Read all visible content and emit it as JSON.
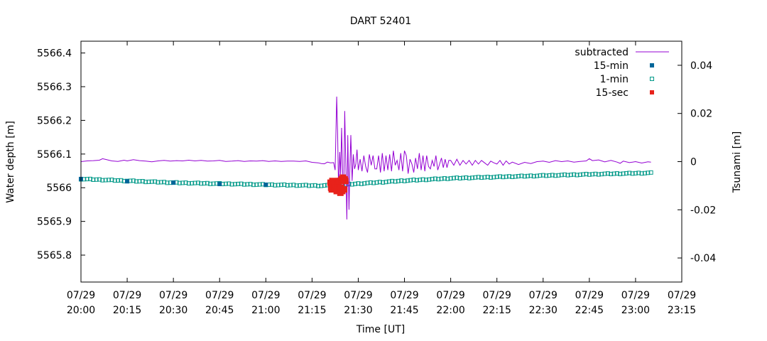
{
  "chart_data": {
    "type": "line",
    "title": "DART 52401",
    "xlabel": "Time [UT]",
    "ylabel": "Water depth [m]",
    "y2label": "Tsunami [m]",
    "x_ticks": [
      {
        "top": "07/29",
        "bottom": "20:00",
        "minutes": 0
      },
      {
        "top": "07/29",
        "bottom": "20:15",
        "minutes": 15
      },
      {
        "top": "07/29",
        "bottom": "20:30",
        "minutes": 30
      },
      {
        "top": "07/29",
        "bottom": "20:45",
        "minutes": 45
      },
      {
        "top": "07/29",
        "bottom": "21:00",
        "minutes": 60
      },
      {
        "top": "07/29",
        "bottom": "21:15",
        "minutes": 75
      },
      {
        "top": "07/29",
        "bottom": "21:30",
        "minutes": 90
      },
      {
        "top": "07/29",
        "bottom": "21:45",
        "minutes": 105
      },
      {
        "top": "07/29",
        "bottom": "22:00",
        "minutes": 120
      },
      {
        "top": "07/29",
        "bottom": "22:15",
        "minutes": 135
      },
      {
        "top": "07/29",
        "bottom": "22:30",
        "minutes": 150
      },
      {
        "top": "07/29",
        "bottom": "22:45",
        "minutes": 165
      },
      {
        "top": "07/29",
        "bottom": "23:00",
        "minutes": 180
      },
      {
        "top": "07/29",
        "bottom": "23:15",
        "minutes": 195
      }
    ],
    "xlim_minutes": [
      0,
      195
    ],
    "ylim": [
      5565.72,
      5566.435
    ],
    "y_ticks": [
      "5565.8",
      "5565.9",
      "5566",
      "5566.1",
      "5566.2",
      "5566.3",
      "5566.4"
    ],
    "y2lim": [
      -0.05,
      0.05
    ],
    "y2_ticks": [
      "-0.04",
      "-0.02",
      "0",
      "0.02",
      "0.04"
    ],
    "legend_position": "top-right",
    "series": [
      {
        "name": "subtracted",
        "axis": "y2",
        "style": "line",
        "color": "#9400d3",
        "points": [
          [
            0,
            0.0
          ],
          [
            2,
            0.0003
          ],
          [
            4,
            0.0004
          ],
          [
            6,
            0.0006
          ],
          [
            7,
            0.0012
          ],
          [
            8,
            0.0009
          ],
          [
            10,
            0.0003
          ],
          [
            12,
            0.0001
          ],
          [
            14,
            0.0006
          ],
          [
            15,
            0.0003
          ],
          [
            17,
            0.0008
          ],
          [
            19,
            0.0004
          ],
          [
            21,
            0.0002
          ],
          [
            23,
            -0.0001
          ],
          [
            25,
            0.0003
          ],
          [
            27,
            0.0005
          ],
          [
            29,
            0.0002
          ],
          [
            31,
            0.0004
          ],
          [
            33,
            0.0003
          ],
          [
            35,
            0.0006
          ],
          [
            37,
            0.0003
          ],
          [
            39,
            0.0005
          ],
          [
            41,
            0.0002
          ],
          [
            43,
            0.0003
          ],
          [
            45,
            0.0005
          ],
          [
            47,
            0.0001
          ],
          [
            49,
            0.0002
          ],
          [
            51,
            0.0004
          ],
          [
            53,
            0.0001
          ],
          [
            55,
            0.0003
          ],
          [
            57,
            0.0002
          ],
          [
            59,
            0.0004
          ],
          [
            61,
            0.0001
          ],
          [
            63,
            0.0003
          ],
          [
            65,
            0.0001
          ],
          [
            67,
            0.0002
          ],
          [
            69,
            0.0002
          ],
          [
            71,
            0.0001
          ],
          [
            73,
            0.0003
          ],
          [
            75,
            -0.0003
          ],
          [
            77,
            -0.0005
          ],
          [
            78,
            -0.0008
          ],
          [
            79,
            -0.0009
          ],
          [
            80,
            -0.0002
          ],
          [
            81,
            -0.0005
          ],
          [
            82,
            -0.0004
          ],
          [
            82.5,
            -0.0035
          ],
          [
            83,
            0.027
          ],
          [
            83.3,
            0.012
          ],
          [
            83.6,
            -0.012
          ],
          [
            84,
            0.004
          ],
          [
            84.3,
            -0.006
          ],
          [
            84.6,
            0.014
          ],
          [
            85,
            -0.008
          ],
          [
            85.3,
            -0.012
          ],
          [
            85.6,
            0.021
          ],
          [
            86,
            -0.004
          ],
          [
            86.3,
            -0.024
          ],
          [
            86.6,
            0.011
          ],
          [
            87,
            -0.02
          ],
          [
            87.3,
            -0.002
          ],
          [
            87.6,
            0.011
          ],
          [
            88,
            -0.008
          ],
          [
            88.4,
            0.003
          ],
          [
            88.8,
            -0.003
          ],
          [
            89.2,
            -0.001
          ],
          [
            89.6,
            0.005
          ],
          [
            90,
            -0.0035
          ],
          [
            90.6,
            0.001
          ],
          [
            91.2,
            -0.004
          ],
          [
            91.8,
            0.0025
          ],
          [
            92.4,
            -0.002
          ],
          [
            93,
            -0.0045
          ],
          [
            93.6,
            0.003
          ],
          [
            94.2,
            -0.0015
          ],
          [
            94.8,
            0.0025
          ],
          [
            95.4,
            -0.003
          ],
          [
            96,
            -0.003
          ],
          [
            96.6,
            0.0025
          ],
          [
            97.2,
            -0.0045
          ],
          [
            97.8,
            0.0035
          ],
          [
            98.4,
            -0.004
          ],
          [
            99,
            0.0025
          ],
          [
            99.6,
            -0.0035
          ],
          [
            100.2,
            0.003
          ],
          [
            100.8,
            -0.004
          ],
          [
            101.4,
            0.0045
          ],
          [
            102,
            -0.0015
          ],
          [
            102.6,
            0.0005
          ],
          [
            103.2,
            -0.0035
          ],
          [
            103.8,
            0.0035
          ],
          [
            104.4,
            -0.004
          ],
          [
            105,
            0.0045
          ],
          [
            105.6,
            0.0025
          ],
          [
            106.2,
            -0.005
          ],
          [
            106.8,
            0.001
          ],
          [
            107.4,
            -0.001
          ],
          [
            108,
            -0.0045
          ],
          [
            108.6,
            0.0015
          ],
          [
            109.2,
            -0.003
          ],
          [
            109.8,
            0.0035
          ],
          [
            110.4,
            -0.0035
          ],
          [
            111,
            0.0025
          ],
          [
            111.6,
            -0.004
          ],
          [
            112.2,
            0.0025
          ],
          [
            112.8,
            -0.002
          ],
          [
            113.4,
            -0.003
          ],
          [
            114,
            0.0005
          ],
          [
            114.6,
            -0.002
          ],
          [
            115.2,
            0.0025
          ],
          [
            115.8,
            -0.0035
          ],
          [
            116.4,
            -0.001
          ],
          [
            117,
            0.0015
          ],
          [
            117.6,
            -0.0025
          ],
          [
            118.2,
            0.001
          ],
          [
            118.8,
            -0.0025
          ],
          [
            119.4,
            0.0005
          ],
          [
            120,
            0.0005
          ],
          [
            121,
            -0.0015
          ],
          [
            122,
            0.001
          ],
          [
            123,
            -0.0015
          ],
          [
            124,
            0.0005
          ],
          [
            125,
            -0.001
          ],
          [
            126,
            0.0005
          ],
          [
            127,
            -0.0015
          ],
          [
            128,
            0.0005
          ],
          [
            129,
            -0.001
          ],
          [
            130,
            0.0005
          ],
          [
            131,
            -0.0005
          ],
          [
            132,
            -0.0015
          ],
          [
            133,
            0.0002
          ],
          [
            134,
            -0.0005
          ],
          [
            135,
            -0.001
          ],
          [
            136,
            0.0005
          ],
          [
            137,
            -0.0015
          ],
          [
            138,
            0.0003
          ],
          [
            139,
            -0.001
          ],
          [
            140,
            -0.0002
          ],
          [
            142,
            -0.0012
          ],
          [
            144,
            -0.0003
          ],
          [
            146,
            -0.0008
          ],
          [
            148,
            0.0
          ],
          [
            150,
            0.0002
          ],
          [
            152,
            -0.0003
          ],
          [
            154,
            0.0004
          ],
          [
            156,
            0.0
          ],
          [
            158,
            0.0003
          ],
          [
            160,
            -0.0002
          ],
          [
            162,
            0.0001
          ],
          [
            164,
            0.0003
          ],
          [
            165,
            0.0012
          ],
          [
            166,
            0.0004
          ],
          [
            168,
            0.0007
          ],
          [
            170,
            -0.0001
          ],
          [
            172,
            0.0005
          ],
          [
            174,
            -0.0002
          ],
          [
            175,
            -0.0007
          ],
          [
            176,
            0.0002
          ],
          [
            178,
            -0.0004
          ],
          [
            180,
            0.0
          ],
          [
            182,
            -0.0006
          ],
          [
            184,
            -0.0001
          ],
          [
            185,
            -0.0002
          ]
        ]
      },
      {
        "name": "15-min",
        "axis": "y",
        "style": "filled-square",
        "color": "#006699",
        "points": [
          [
            0,
            5566.026
          ],
          [
            15,
            5566.019
          ],
          [
            30,
            5566.015
          ],
          [
            45,
            5566.011
          ],
          [
            60,
            5566.009
          ]
        ]
      },
      {
        "name": "1-min",
        "axis": "y",
        "style": "open-square",
        "color": "#009988",
        "trend": [
          [
            0,
            5566.026
          ],
          [
            30,
            5566.015
          ],
          [
            60,
            5566.009
          ],
          [
            78,
            5566.006
          ],
          [
            84,
            5566.008
          ],
          [
            90,
            5566.012
          ],
          [
            105,
            5566.021
          ],
          [
            120,
            5566.028
          ],
          [
            150,
            5566.036
          ],
          [
            170,
            5566.041
          ],
          [
            185,
            5566.044
          ]
        ]
      },
      {
        "name": "15-sec",
        "axis": "y",
        "style": "filled-square",
        "color": "#e8221b",
        "points": [
          [
            81.0,
            5566.015
          ],
          [
            81.2,
            5566.0
          ],
          [
            81.4,
            5565.995
          ],
          [
            81.6,
            5566.02
          ],
          [
            81.8,
            5566.005
          ],
          [
            82.0,
            5566.01
          ],
          [
            82.2,
            5566.005
          ],
          [
            82.4,
            5566.0
          ],
          [
            82.6,
            5566.012
          ],
          [
            82.8,
            5566.0
          ],
          [
            83.0,
            5565.99
          ],
          [
            83.2,
            5566.01
          ],
          [
            83.4,
            5566.01
          ],
          [
            83.6,
            5566.02
          ],
          [
            83.8,
            5565.995
          ],
          [
            84.0,
            5566.02
          ],
          [
            84.2,
            5565.985
          ],
          [
            84.4,
            5566.0
          ],
          [
            84.6,
            5566.025
          ],
          [
            84.8,
            5565.99
          ],
          [
            85.0,
            5566.03
          ],
          [
            85.2,
            5566.025
          ],
          [
            85.4,
            5565.995
          ],
          [
            85.6,
            5566.025
          ],
          [
            85.8,
            5566.02
          ]
        ]
      }
    ]
  }
}
